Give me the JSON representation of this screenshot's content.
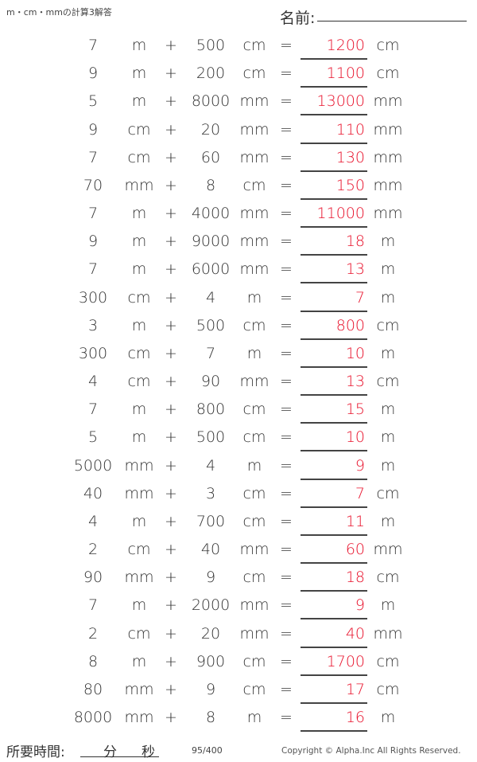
{
  "header": {
    "title": "m・cm・mmの計算3解答",
    "name_label": "名前:"
  },
  "colors": {
    "answer": "#e8102a",
    "text": "#333333"
  },
  "problems": [
    {
      "a": "7",
      "au": "m",
      "op": "+",
      "b": "500",
      "bu": "cm",
      "eq": "=",
      "ans": "1200",
      "ansu": "cm"
    },
    {
      "a": "9",
      "au": "m",
      "op": "+",
      "b": "200",
      "bu": "cm",
      "eq": "=",
      "ans": "1100",
      "ansu": "cm"
    },
    {
      "a": "5",
      "au": "m",
      "op": "+",
      "b": "8000",
      "bu": "mm",
      "eq": "=",
      "ans": "13000",
      "ansu": "mm"
    },
    {
      "a": "9",
      "au": "cm",
      "op": "+",
      "b": "20",
      "bu": "mm",
      "eq": "=",
      "ans": "110",
      "ansu": "mm"
    },
    {
      "a": "7",
      "au": "cm",
      "op": "+",
      "b": "60",
      "bu": "mm",
      "eq": "=",
      "ans": "130",
      "ansu": "mm"
    },
    {
      "a": "70",
      "au": "mm",
      "op": "+",
      "b": "8",
      "bu": "cm",
      "eq": "=",
      "ans": "150",
      "ansu": "mm"
    },
    {
      "a": "7",
      "au": "m",
      "op": "+",
      "b": "4000",
      "bu": "mm",
      "eq": "=",
      "ans": "11000",
      "ansu": "mm"
    },
    {
      "a": "9",
      "au": "m",
      "op": "+",
      "b": "9000",
      "bu": "mm",
      "eq": "=",
      "ans": "18",
      "ansu": "m"
    },
    {
      "a": "7",
      "au": "m",
      "op": "+",
      "b": "6000",
      "bu": "mm",
      "eq": "=",
      "ans": "13",
      "ansu": "m"
    },
    {
      "a": "300",
      "au": "cm",
      "op": "+",
      "b": "4",
      "bu": "m",
      "eq": "=",
      "ans": "7",
      "ansu": "m"
    },
    {
      "a": "3",
      "au": "m",
      "op": "+",
      "b": "500",
      "bu": "cm",
      "eq": "=",
      "ans": "800",
      "ansu": "cm"
    },
    {
      "a": "300",
      "au": "cm",
      "op": "+",
      "b": "7",
      "bu": "m",
      "eq": "=",
      "ans": "10",
      "ansu": "m"
    },
    {
      "a": "4",
      "au": "cm",
      "op": "+",
      "b": "90",
      "bu": "mm",
      "eq": "=",
      "ans": "13",
      "ansu": "cm"
    },
    {
      "a": "7",
      "au": "m",
      "op": "+",
      "b": "800",
      "bu": "cm",
      "eq": "=",
      "ans": "15",
      "ansu": "m"
    },
    {
      "a": "5",
      "au": "m",
      "op": "+",
      "b": "500",
      "bu": "cm",
      "eq": "=",
      "ans": "10",
      "ansu": "m"
    },
    {
      "a": "5000",
      "au": "mm",
      "op": "+",
      "b": "4",
      "bu": "m",
      "eq": "=",
      "ans": "9",
      "ansu": "m"
    },
    {
      "a": "40",
      "au": "mm",
      "op": "+",
      "b": "3",
      "bu": "cm",
      "eq": "=",
      "ans": "7",
      "ansu": "cm"
    },
    {
      "a": "4",
      "au": "m",
      "op": "+",
      "b": "700",
      "bu": "cm",
      "eq": "=",
      "ans": "11",
      "ansu": "m"
    },
    {
      "a": "2",
      "au": "cm",
      "op": "+",
      "b": "40",
      "bu": "mm",
      "eq": "=",
      "ans": "60",
      "ansu": "mm"
    },
    {
      "a": "90",
      "au": "mm",
      "op": "+",
      "b": "9",
      "bu": "cm",
      "eq": "=",
      "ans": "18",
      "ansu": "cm"
    },
    {
      "a": "7",
      "au": "m",
      "op": "+",
      "b": "2000",
      "bu": "mm",
      "eq": "=",
      "ans": "9",
      "ansu": "m"
    },
    {
      "a": "2",
      "au": "cm",
      "op": "+",
      "b": "20",
      "bu": "mm",
      "eq": "=",
      "ans": "40",
      "ansu": "mm"
    },
    {
      "a": "8",
      "au": "m",
      "op": "+",
      "b": "900",
      "bu": "cm",
      "eq": "=",
      "ans": "1700",
      "ansu": "cm"
    },
    {
      "a": "80",
      "au": "mm",
      "op": "+",
      "b": "9",
      "bu": "cm",
      "eq": "=",
      "ans": "17",
      "ansu": "cm"
    },
    {
      "a": "8000",
      "au": "mm",
      "op": "+",
      "b": "8",
      "bu": "m",
      "eq": "=",
      "ans": "16",
      "ansu": "m"
    }
  ],
  "footer": {
    "time_label": "所要時間:",
    "minutes": "分",
    "seconds": "秒",
    "page": "95/400",
    "copyright": "Copyright © Alpha.Inc All Rights Reserved."
  }
}
